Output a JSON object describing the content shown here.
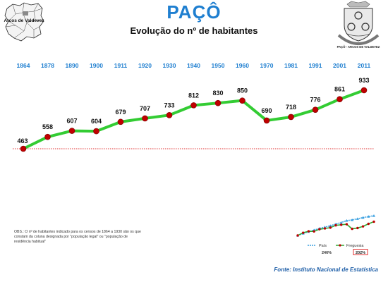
{
  "header": {
    "title": "PAÇÔ",
    "subtitle": "Evolução do nº de habitantes"
  },
  "map_thumbnail": {
    "label": "Arcos de Valdevez"
  },
  "crest": {
    "text": "PAÇÔ - ARCOS DE VALDEVEZ"
  },
  "colors": {
    "title": "#1f7fd0",
    "year_labels": "#1f7fd0",
    "line": "#33cc33",
    "marker": "#c00000",
    "baseline": "#e03030",
    "country_series": "#3aa0e0"
  },
  "chart_data": {
    "type": "line",
    "title": "Evolução do nº de habitantes",
    "xlabel": "",
    "ylabel": "",
    "x": [
      "1864",
      "1878",
      "1890",
      "1900",
      "1911",
      "1920",
      "1930",
      "1940",
      "1950",
      "1960",
      "1970",
      "1981",
      "1991",
      "2001",
      "2011"
    ],
    "series": [
      {
        "name": "Freguesia",
        "values": [
          463,
          558,
          607,
          604,
          679,
          707,
          733,
          812,
          830,
          850,
          690,
          718,
          776,
          861,
          933
        ]
      }
    ],
    "data_labels": [
      "463",
      "558",
      "607",
      "604",
      "679",
      "707",
      "733",
      "812",
      "830",
      "850",
      "690",
      "718",
      "776",
      "861",
      "933"
    ],
    "baseline_value": 463,
    "ylim": [
      300,
      1000
    ],
    "grid": false,
    "legend": "none"
  },
  "mini_chart": {
    "legend": [
      {
        "name": "País",
        "color": "#3aa0e0"
      },
      {
        "name": "Freguesia",
        "color": "#c00000"
      }
    ],
    "pais_growth": "246%",
    "freguesia_growth": "202%",
    "pais_index": [
      100,
      115,
      128,
      140,
      152,
      162,
      172,
      184,
      196,
      210,
      215,
      224,
      232,
      240,
      246
    ],
    "freguesia_index": [
      100,
      120,
      131,
      130,
      146,
      152,
      158,
      175,
      179,
      183,
      149,
      155,
      167,
      186,
      202
    ]
  },
  "note": "OBS.: O nº de habitantes indicado para os censos de 1864 a 1930 são os que constam da coluna designada por \"população legal\" ou \"população de residência habitual\"",
  "source": "Fonte: Instituto Nacional de Estatística"
}
